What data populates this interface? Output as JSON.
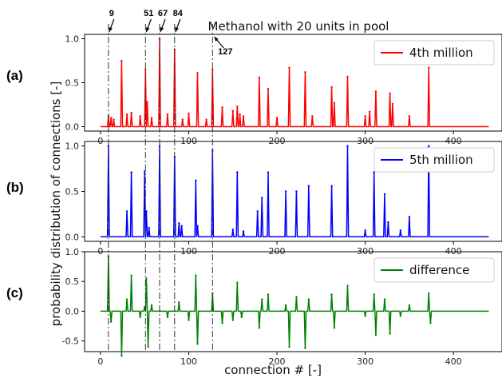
{
  "chart_data": {
    "title": "Methanol with 20 units in pool",
    "xlabel": "connection # [-]",
    "ylabel": "probability distribution of connections [-]",
    "xlim": [
      -18,
      455
    ],
    "xticks": [
      0,
      100,
      200,
      300,
      400
    ],
    "markers": [
      {
        "x": 9,
        "label": "9"
      },
      {
        "x": 51,
        "label": "51"
      },
      {
        "x": 67,
        "label": "67"
      },
      {
        "x": 84,
        "label": "84"
      },
      {
        "x": 127,
        "label": "127"
      }
    ],
    "panels": [
      {
        "panel_label": "(a)",
        "type": "line",
        "ylim": [
          -0.05,
          1.05
        ],
        "yticks": [
          "1.0",
          "0.5",
          "0.0"
        ],
        "ytick_values": [
          1.0,
          0.5,
          0.0
        ],
        "legend": "4th million",
        "legend_position": "top-right",
        "color": "#ff0000",
        "peaks": [
          {
            "x": 9,
            "y": 0.12
          },
          {
            "x": 12,
            "y": 0.1
          },
          {
            "x": 15,
            "y": 0.08
          },
          {
            "x": 24,
            "y": 0.75
          },
          {
            "x": 30,
            "y": 0.14
          },
          {
            "x": 35,
            "y": 0.16
          },
          {
            "x": 45,
            "y": 0.12
          },
          {
            "x": 51,
            "y": 0.65
          },
          {
            "x": 53,
            "y": 0.28
          },
          {
            "x": 58,
            "y": 0.1
          },
          {
            "x": 67,
            "y": 1.0
          },
          {
            "x": 76,
            "y": 0.14
          },
          {
            "x": 84,
            "y": 0.88
          },
          {
            "x": 93,
            "y": 0.08
          },
          {
            "x": 100,
            "y": 0.15
          },
          {
            "x": 110,
            "y": 0.61
          },
          {
            "x": 120,
            "y": 0.08
          },
          {
            "x": 127,
            "y": 0.65
          },
          {
            "x": 138,
            "y": 0.22
          },
          {
            "x": 150,
            "y": 0.18
          },
          {
            "x": 155,
            "y": 0.23
          },
          {
            "x": 158,
            "y": 0.14
          },
          {
            "x": 162,
            "y": 0.12
          },
          {
            "x": 180,
            "y": 0.56
          },
          {
            "x": 190,
            "y": 0.43
          },
          {
            "x": 200,
            "y": 0.1
          },
          {
            "x": 214,
            "y": 0.67
          },
          {
            "x": 232,
            "y": 0.62
          },
          {
            "x": 240,
            "y": 0.12
          },
          {
            "x": 262,
            "y": 0.45
          },
          {
            "x": 265,
            "y": 0.27
          },
          {
            "x": 280,
            "y": 0.57
          },
          {
            "x": 300,
            "y": 0.12
          },
          {
            "x": 305,
            "y": 0.17
          },
          {
            "x": 312,
            "y": 0.4
          },
          {
            "x": 328,
            "y": 0.38
          },
          {
            "x": 331,
            "y": 0.26
          },
          {
            "x": 350,
            "y": 0.12
          },
          {
            "x": 372,
            "y": 0.67
          }
        ]
      },
      {
        "panel_label": "(b)",
        "type": "line",
        "ylim": [
          -0.05,
          1.05
        ],
        "yticks": [
          "1.0",
          "0.5",
          "0.0"
        ],
        "ytick_values": [
          1.0,
          0.5,
          0.0
        ],
        "legend": "5th million",
        "legend_position": "top-right",
        "color": "#0000ff",
        "peaks": [
          {
            "x": 9,
            "y": 1.0
          },
          {
            "x": 30,
            "y": 0.28
          },
          {
            "x": 35,
            "y": 0.71
          },
          {
            "x": 50,
            "y": 0.72
          },
          {
            "x": 52,
            "y": 0.28
          },
          {
            "x": 55,
            "y": 0.1
          },
          {
            "x": 67,
            "y": 1.0
          },
          {
            "x": 84,
            "y": 0.88
          },
          {
            "x": 89,
            "y": 0.15
          },
          {
            "x": 92,
            "y": 0.12
          },
          {
            "x": 108,
            "y": 0.62
          },
          {
            "x": 110,
            "y": 0.12
          },
          {
            "x": 127,
            "y": 0.95
          },
          {
            "x": 150,
            "y": 0.08
          },
          {
            "x": 155,
            "y": 0.71
          },
          {
            "x": 162,
            "y": 0.06
          },
          {
            "x": 178,
            "y": 0.28
          },
          {
            "x": 183,
            "y": 0.43
          },
          {
            "x": 190,
            "y": 0.71
          },
          {
            "x": 210,
            "y": 0.5
          },
          {
            "x": 222,
            "y": 0.5
          },
          {
            "x": 236,
            "y": 0.56
          },
          {
            "x": 262,
            "y": 0.56
          },
          {
            "x": 280,
            "y": 1.0
          },
          {
            "x": 300,
            "y": 0.07
          },
          {
            "x": 310,
            "y": 0.71
          },
          {
            "x": 322,
            "y": 0.47
          },
          {
            "x": 326,
            "y": 0.16
          },
          {
            "x": 340,
            "y": 0.07
          },
          {
            "x": 350,
            "y": 0.22
          },
          {
            "x": 372,
            "y": 1.0
          }
        ]
      },
      {
        "panel_label": "(c)",
        "type": "line",
        "ylim": [
          -0.68,
          1.0
        ],
        "yticks": [
          "1.0",
          "0.5",
          "0.0",
          "-0.5"
        ],
        "ytick_values": [
          1.0,
          0.5,
          0.0,
          -0.5
        ],
        "legend": "difference",
        "legend_position": "top-right",
        "color": "#008000",
        "peaks": [
          {
            "x": 9,
            "y": 0.92
          },
          {
            "x": 12,
            "y": -0.18
          },
          {
            "x": 24,
            "y": -0.75
          },
          {
            "x": 30,
            "y": 0.2
          },
          {
            "x": 35,
            "y": 0.6
          },
          {
            "x": 45,
            "y": -0.1
          },
          {
            "x": 50,
            "y": 0.07
          },
          {
            "x": 52,
            "y": 0.55
          },
          {
            "x": 54,
            "y": -0.6
          },
          {
            "x": 58,
            "y": 0.1
          },
          {
            "x": 67,
            "y": 0.0
          },
          {
            "x": 76,
            "y": -0.1
          },
          {
            "x": 84,
            "y": 0.0
          },
          {
            "x": 89,
            "y": 0.15
          },
          {
            "x": 100,
            "y": -0.15
          },
          {
            "x": 108,
            "y": 0.6
          },
          {
            "x": 110,
            "y": -0.55
          },
          {
            "x": 127,
            "y": 0.3
          },
          {
            "x": 138,
            "y": -0.2
          },
          {
            "x": 150,
            "y": -0.15
          },
          {
            "x": 155,
            "y": 0.48
          },
          {
            "x": 160,
            "y": -0.1
          },
          {
            "x": 180,
            "y": -0.28
          },
          {
            "x": 183,
            "y": 0.2
          },
          {
            "x": 190,
            "y": 0.28
          },
          {
            "x": 210,
            "y": 0.1
          },
          {
            "x": 214,
            "y": -0.6
          },
          {
            "x": 222,
            "y": 0.24
          },
          {
            "x": 232,
            "y": -0.62
          },
          {
            "x": 236,
            "y": 0.2
          },
          {
            "x": 262,
            "y": 0.28
          },
          {
            "x": 265,
            "y": -0.28
          },
          {
            "x": 280,
            "y": 0.43
          },
          {
            "x": 300,
            "y": -0.08
          },
          {
            "x": 310,
            "y": 0.28
          },
          {
            "x": 312,
            "y": -0.4
          },
          {
            "x": 322,
            "y": 0.2
          },
          {
            "x": 328,
            "y": -0.38
          },
          {
            "x": 340,
            "y": -0.08
          },
          {
            "x": 350,
            "y": 0.1
          },
          {
            "x": 372,
            "y": 0.3
          },
          {
            "x": 374,
            "y": -0.2
          }
        ]
      }
    ]
  },
  "colors": {
    "marker_line": "#333333",
    "axes": "#000000"
  }
}
